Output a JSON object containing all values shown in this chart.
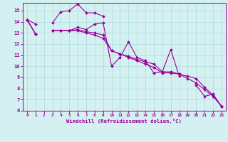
{
  "hours": [
    0,
    1,
    2,
    3,
    4,
    5,
    6,
    7,
    8,
    9,
    10,
    11,
    12,
    13,
    14,
    15,
    16,
    17,
    18,
    19,
    20,
    21,
    22,
    23
  ],
  "line1": [
    14.2,
    13.8,
    null,
    13.9,
    14.9,
    15.0,
    15.6,
    14.8,
    14.8,
    14.5,
    null,
    null,
    null,
    null,
    null,
    null,
    null,
    null,
    null,
    null,
    null,
    null,
    null,
    null
  ],
  "line2": [
    14.2,
    12.9,
    null,
    13.2,
    13.2,
    13.2,
    13.5,
    13.3,
    13.8,
    13.9,
    10.0,
    10.8,
    12.2,
    10.8,
    10.5,
    9.4,
    9.5,
    11.5,
    9.1,
    null,
    8.3,
    7.3,
    7.5,
    6.4
  ],
  "line3": [
    14.2,
    12.9,
    null,
    13.2,
    13.2,
    13.2,
    13.3,
    13.1,
    13.0,
    12.8,
    11.4,
    11.1,
    10.9,
    10.6,
    10.4,
    10.2,
    9.5,
    9.5,
    9.3,
    9.1,
    8.9,
    8.1,
    7.4,
    6.4
  ],
  "line4": [
    14.2,
    12.9,
    null,
    13.2,
    13.2,
    13.2,
    13.2,
    13.0,
    12.8,
    12.5,
    11.4,
    11.1,
    10.8,
    10.5,
    10.2,
    9.9,
    9.4,
    9.4,
    9.3,
    8.9,
    8.5,
    7.9,
    7.3,
    6.4
  ],
  "line_color": "#990099",
  "bg_color": "#d4f0f0",
  "grid_color": "#aadddd",
  "xlabel": "Windchill (Refroidissement éolien,°C)",
  "ylim": [
    6,
    15.7
  ],
  "yticks": [
    6,
    7,
    8,
    9,
    10,
    11,
    12,
    13,
    14,
    15
  ],
  "xticks": [
    0,
    1,
    2,
    3,
    4,
    5,
    6,
    7,
    8,
    9,
    10,
    11,
    12,
    13,
    14,
    15,
    16,
    17,
    18,
    19,
    20,
    21,
    22,
    23
  ],
  "markersize": 2.0,
  "linewidth": 0.8
}
